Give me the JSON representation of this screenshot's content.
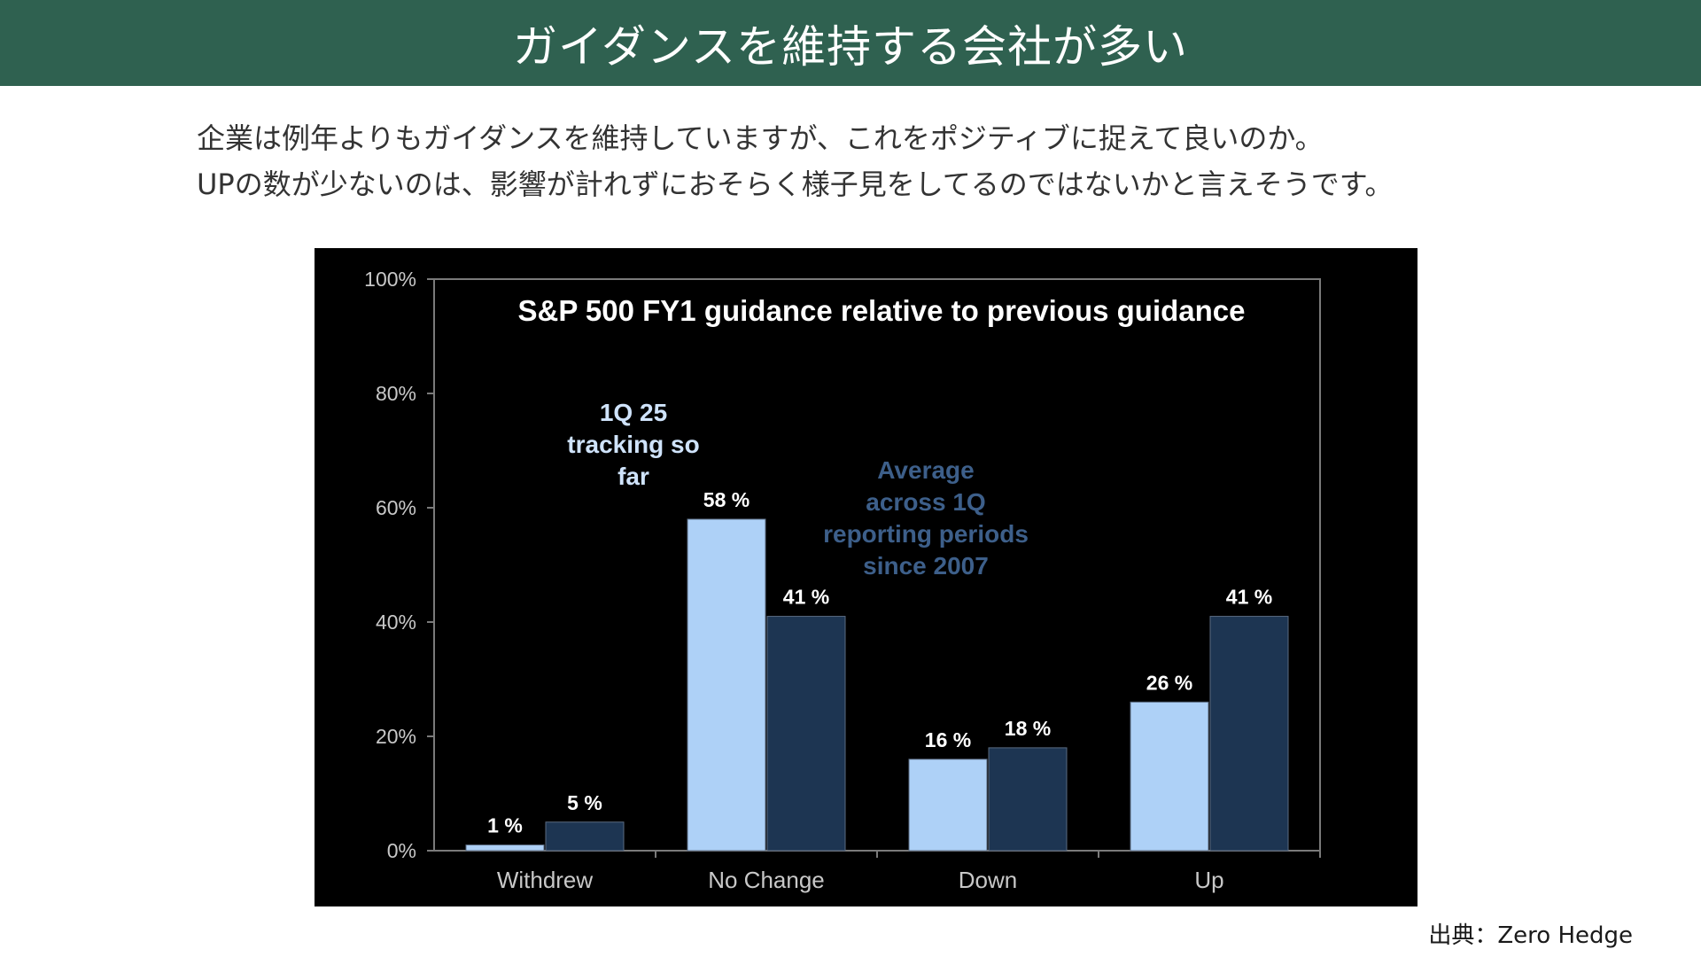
{
  "header": {
    "title": "ガイダンスを維持する会社が多い"
  },
  "description": {
    "line1": "企業は例年よりもガイダンスを維持していますが、これをポジティブに捉えて良いのか。",
    "line2": "UPの数が少ないのは、影響が計れずにおそらく様子見をしてるのではないかと言えそうです。"
  },
  "source": "出典：Zero Hedge",
  "colors": {
    "header_bg": "#2f6150",
    "series1": "#aed1f7",
    "series2": "#1d3552",
    "annotation": "#3d5f8a"
  },
  "chart_data": {
    "type": "bar",
    "title": "S&P 500 FY1 guidance relative to previous guidance",
    "categories": [
      "Withdrew",
      "No Change",
      "Down",
      "Up"
    ],
    "series": [
      {
        "values": [
          1,
          58,
          16,
          26
        ],
        "labels": [
          "1 %",
          "58 %",
          "16 %",
          "26 %"
        ]
      },
      {
        "values": [
          5,
          41,
          18,
          41
        ],
        "labels": [
          "5 %",
          "41 %",
          "18 %",
          "41 %"
        ]
      }
    ],
    "ylim": [
      0,
      100
    ],
    "yticks": [
      "0%",
      "20%",
      "40%",
      "60%",
      "80%",
      "100%"
    ],
    "annotations": {
      "series1_note": [
        "1Q 25",
        "tracking so",
        "far"
      ],
      "series2_note": [
        "Average",
        "across 1Q",
        "reporting periods",
        "since 2007"
      ]
    },
    "grid": false
  }
}
